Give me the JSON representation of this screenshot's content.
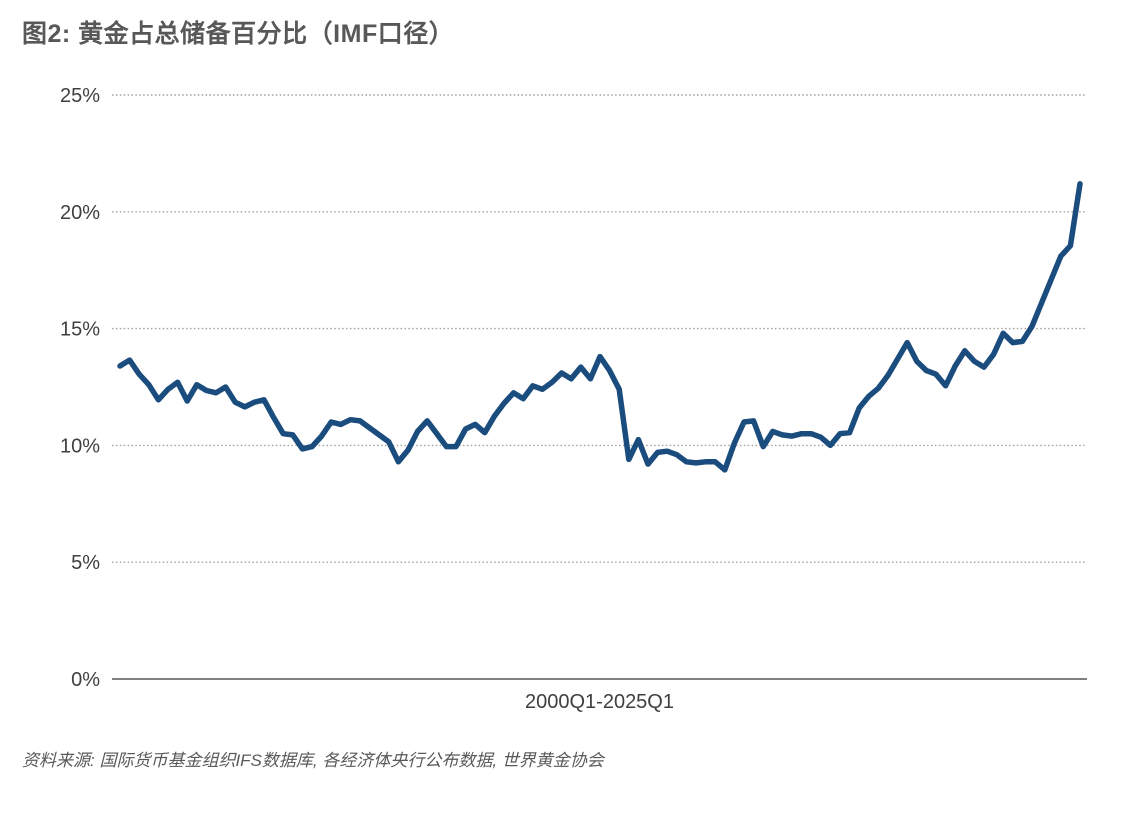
{
  "title": "图2: 黄金占总储备百分比（IMF口径）",
  "source": "资料来源: 国际货币基金组织IFS数据库, 各经济体央行公布数据, 世界黄金协会",
  "colors": {
    "title_text": "#595757",
    "axis_text": "#3f3f3f",
    "gridline": "#a0a0a0",
    "axis_line": "#808080",
    "line": "#1a4c7e",
    "source_text": "#595959",
    "background": "#ffffff"
  },
  "chart_data": {
    "type": "line",
    "title": "图2: 黄金占总储备百分比（IMF口径）",
    "xlabel": "2000Q1-2025Q1",
    "ylabel": "",
    "x_start": "2000Q1",
    "x_end": "2025Q1",
    "x_frequency": "quarterly",
    "ylim": [
      0,
      25
    ],
    "ytick_values": [
      0,
      5,
      10,
      15,
      20,
      25
    ],
    "ytick_labels": [
      "0%",
      "5%",
      "10%",
      "15%",
      "20%",
      "25%"
    ],
    "grid": "horizontal-dotted",
    "legend": "none",
    "line_color": "#1a4c7e",
    "series": [
      {
        "name": "黄金占总储备百分比",
        "values": [
          13.4,
          13.65,
          13.05,
          12.6,
          11.95,
          12.4,
          12.7,
          11.9,
          12.6,
          12.35,
          12.25,
          12.5,
          11.85,
          11.65,
          11.85,
          11.95,
          11.2,
          10.5,
          10.45,
          9.85,
          9.95,
          10.4,
          11.0,
          10.9,
          11.1,
          11.05,
          10.75,
          10.45,
          10.15,
          9.3,
          9.8,
          10.6,
          11.05,
          10.5,
          9.95,
          9.95,
          10.7,
          10.9,
          10.55,
          11.25,
          11.8,
          12.25,
          12.0,
          12.55,
          12.4,
          12.7,
          13.1,
          12.85,
          13.35,
          12.85,
          13.8,
          13.2,
          12.4,
          9.4,
          10.25,
          9.2,
          9.7,
          9.75,
          9.6,
          9.3,
          9.25,
          9.3,
          9.3,
          8.95,
          10.1,
          11.0,
          11.05,
          9.95,
          10.6,
          10.45,
          10.4,
          10.5,
          10.5,
          10.35,
          10.0,
          10.5,
          10.55,
          11.6,
          12.1,
          12.45,
          13.0,
          13.7,
          14.4,
          13.6,
          13.2,
          13.05,
          12.55,
          13.4,
          14.05,
          13.6,
          13.35,
          13.9,
          14.8,
          14.4,
          14.45,
          15.1,
          16.1,
          17.1,
          18.1,
          18.55,
          21.2
        ]
      }
    ]
  }
}
